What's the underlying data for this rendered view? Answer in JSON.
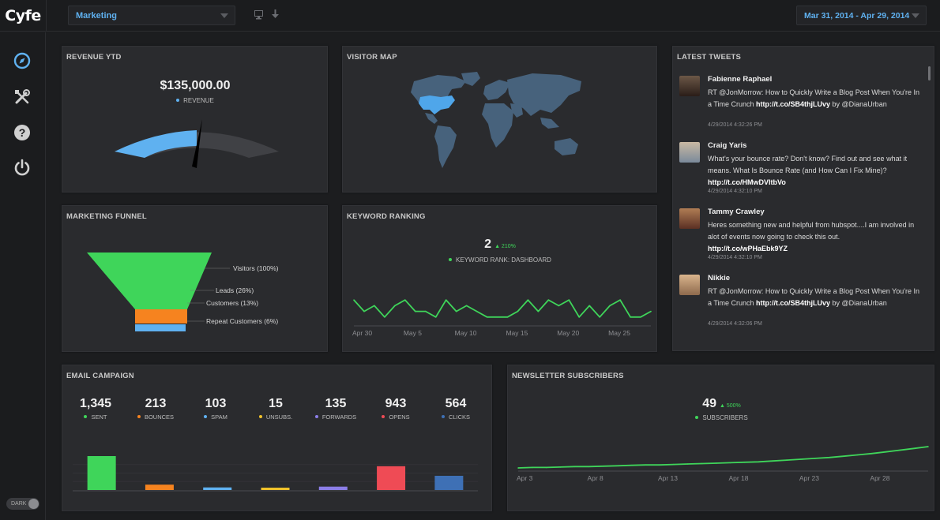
{
  "app": {
    "logo": "Cyfe"
  },
  "header": {
    "dashboard_select": "Marketing",
    "date_range": "Mar 31, 2014 - Apr 29, 2014",
    "icons": [
      "monitor-icon",
      "download-icon"
    ]
  },
  "sidebar": {
    "items": [
      {
        "name": "compass-icon",
        "color": "#5fb1f0"
      },
      {
        "name": "tools-icon",
        "color": "#d0d0d0"
      },
      {
        "name": "help-icon",
        "color": "#d0d0d0"
      },
      {
        "name": "power-icon",
        "color": "#d0d0d0"
      }
    ],
    "theme_toggle": "DARK"
  },
  "colors": {
    "accent": "#5fb1f0",
    "green": "#3fd55a",
    "orange": "#f6831f",
    "red": "#ef4b55",
    "purple": "#8c7ee8",
    "navy": "#3e70b5",
    "yellow": "#f0c22b"
  },
  "revenue": {
    "title": "REVENUE YTD",
    "value": "$135,000.00",
    "legend": "REVENUE",
    "gauge_fraction": 0.5
  },
  "visitor_map": {
    "title": "VISITOR MAP",
    "highlighted_region": "United States"
  },
  "tweets": {
    "title": "LATEST TWEETS",
    "items": [
      {
        "name": "Fabienne Raphael",
        "text": "RT @JonMorrow: How to Quickly Write a Blog Post When You're In a Time Crunch ",
        "link": "http://t.co/SB4thjLUvy",
        "suffix": " by @DianaUrban",
        "time": "4/29/2014 4:32:26 PM"
      },
      {
        "name": "Craig Yaris",
        "text": "What's your bounce rate? Don't know? Find out and see what it means. What Is Bounce Rate (and How Can I Fix Mine)? ",
        "link": "http://t.co/HMwDVItbVo",
        "suffix": "",
        "time": "4/29/2014 4:32:10 PM"
      },
      {
        "name": "Tammy Crawley",
        "text": "Heres something new and helpful from hubspot....I am involved in alot of events now going to check this out. ",
        "link": "http://t.co/wPHaEbk9YZ",
        "suffix": "",
        "time": "4/29/2014 4:32:10 PM"
      },
      {
        "name": "Nikkie",
        "text": "RT @JonMorrow: How to Quickly Write a Blog Post When You're In a Time Crunch ",
        "link": "http://t.co/SB4thjLUvy",
        "suffix": " by @DianaUrban",
        "time": "4/29/2014 4:32:06 PM"
      }
    ]
  },
  "funnel": {
    "title": "MARKETING FUNNEL",
    "stages": [
      {
        "label": "Visitors (100%)",
        "percent": 100,
        "color": "#3fd55a"
      },
      {
        "label": "Leads (26%)",
        "percent": 26,
        "color": "#f6831f"
      },
      {
        "label": "Customers (13%)",
        "percent": 13,
        "color": "#f6831f"
      },
      {
        "label": "Repeat Customers (6%)",
        "percent": 6,
        "color": "#5fb1f0"
      }
    ]
  },
  "keyword": {
    "title": "KEYWORD RANKING",
    "value": "2",
    "delta": "▲ 210%",
    "legend": "KEYWORD RANK: DASHBOARD"
  },
  "email": {
    "title": "EMAIL CAMPAIGN",
    "stats": [
      {
        "value": "1,345",
        "label": "SENT",
        "color": "#3fd55a"
      },
      {
        "value": "213",
        "label": "BOUNCES",
        "color": "#f6831f"
      },
      {
        "value": "103",
        "label": "SPAM",
        "color": "#5fb1f0"
      },
      {
        "value": "15",
        "label": "UNSUBS.",
        "color": "#f0c22b"
      },
      {
        "value": "135",
        "label": "FORWARDS",
        "color": "#8c7ee8"
      },
      {
        "value": "943",
        "label": "OPENS",
        "color": "#ef4b55"
      },
      {
        "value": "564",
        "label": "CLICKS",
        "color": "#3e70b5"
      }
    ]
  },
  "newsletter": {
    "title": "NEWSLETTER SUBSCRIBERS",
    "value": "49",
    "delta": "▲ 500%",
    "legend": "SUBSCRIBERS"
  },
  "chart_data": [
    {
      "type": "line",
      "chart": "keyword",
      "x": [
        "Apr 30",
        "May 1",
        "May 2",
        "May 3",
        "May 4",
        "May 5",
        "May 6",
        "May 7",
        "May 8",
        "May 9",
        "May 10",
        "May 11",
        "May 12",
        "May 13",
        "May 14",
        "May 15",
        "May 16",
        "May 17",
        "May 18",
        "May 19",
        "May 20",
        "May 21",
        "May 22",
        "May 23",
        "May 24",
        "May 25",
        "May 26",
        "May 27",
        "May 28",
        "May 29"
      ],
      "x_ticks": [
        "Apr 30",
        "May 5",
        "May 10",
        "May 15",
        "May 20",
        "May 25"
      ],
      "series": [
        {
          "values": [
            4,
            2,
            3,
            1,
            3,
            4,
            2,
            2,
            1,
            4,
            2,
            3,
            2,
            1,
            1,
            1,
            2,
            4,
            2,
            4,
            3,
            4,
            1,
            3,
            1,
            3,
            4,
            1,
            1,
            2
          ],
          "color": "#3fd55a"
        }
      ],
      "ylim": [
        0,
        5
      ]
    },
    {
      "type": "bar",
      "chart": "email",
      "categories": [
        "SENT",
        "BOUNCES",
        "SPAM",
        "UNSUBS.",
        "FORWARDS",
        "OPENS",
        "CLICKS"
      ],
      "values": [
        1345,
        213,
        103,
        15,
        135,
        943,
        564
      ],
      "ylim": [
        0,
        1345
      ]
    },
    {
      "type": "line",
      "chart": "newsletter",
      "x": [
        "Apr 3",
        "Apr 4",
        "Apr 5",
        "Apr 6",
        "Apr 7",
        "Apr 8",
        "Apr 9",
        "Apr 10",
        "Apr 11",
        "Apr 12",
        "Apr 13",
        "Apr 14",
        "Apr 15",
        "Apr 16",
        "Apr 17",
        "Apr 18",
        "Apr 19",
        "Apr 20",
        "Apr 21",
        "Apr 22",
        "Apr 23",
        "Apr 24",
        "Apr 25",
        "Apr 26",
        "Apr 27",
        "Apr 28",
        "Apr 29",
        "Apr 30",
        "May 1",
        "May 2"
      ],
      "x_ticks": [
        "Apr 3",
        "Apr 8",
        "Apr 13",
        "Apr 18",
        "Apr 23",
        "Apr 28"
      ],
      "series": [
        {
          "values": [
            0,
            1,
            1,
            2,
            3,
            3,
            4,
            5,
            6,
            7,
            7,
            8,
            9,
            10,
            11,
            12,
            13,
            14,
            16,
            18,
            20,
            22,
            24,
            27,
            30,
            33,
            37,
            41,
            45,
            49
          ],
          "color": "#3fd55a"
        }
      ],
      "ylim": [
        0,
        120
      ]
    }
  ]
}
